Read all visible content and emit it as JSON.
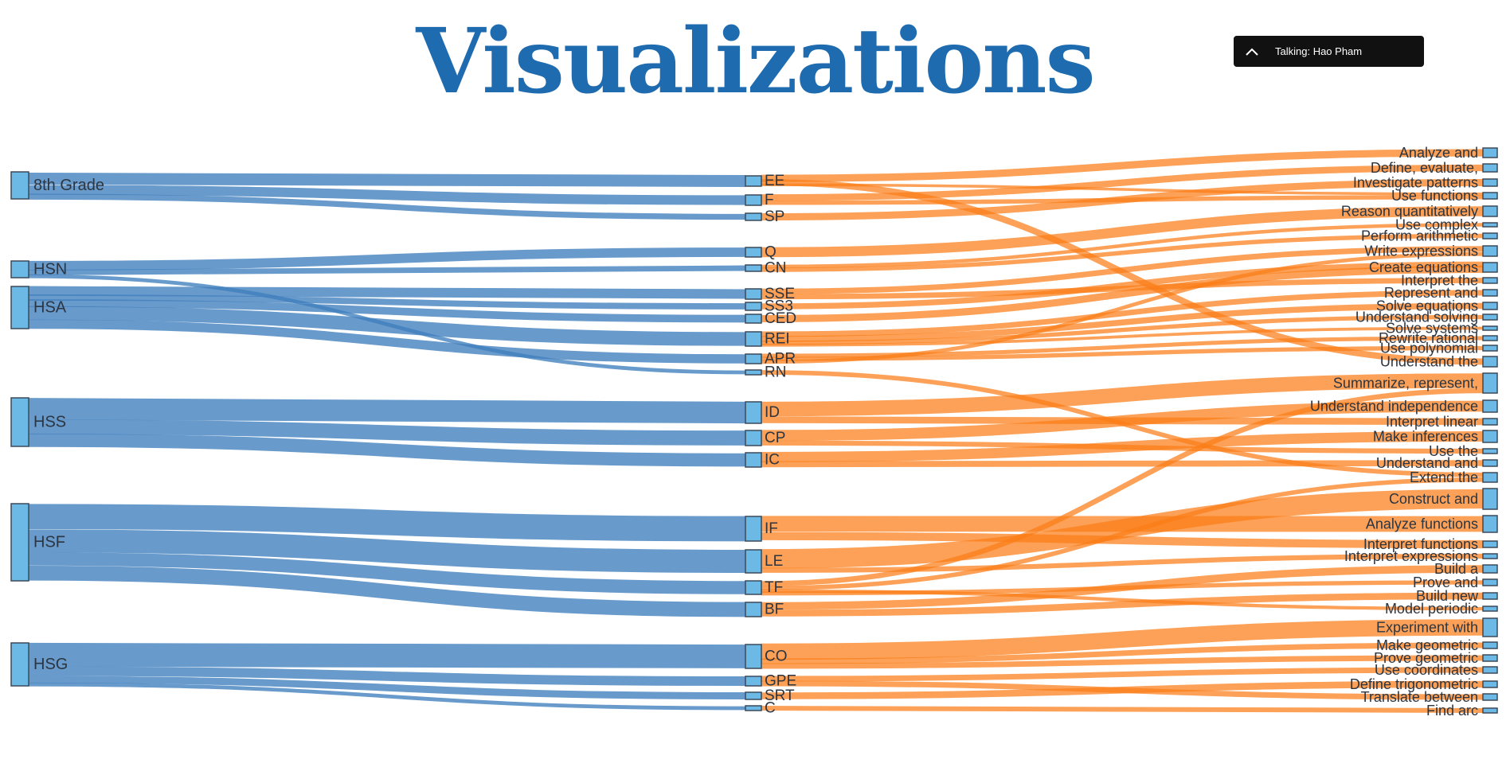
{
  "slide": {
    "title": "Visualizations"
  },
  "meeting": {
    "talking_label": "Talking: Hao Pham"
  },
  "colors": {
    "left_link": "#3d7ebc",
    "right_link": "#fb7d16",
    "node_fill": "#6db9e6",
    "node_stroke": "#3b4a5a",
    "title": "#1e6bb0"
  },
  "chart_data": {
    "type": "sankey",
    "levels": [
      [
        "8th Grade",
        "HSN",
        "HSA",
        "HSS",
        "HSF",
        "HSG"
      ],
      [
        "EE",
        "F",
        "SP",
        "Q",
        "CN",
        "SSE",
        "SS3",
        "CED",
        "REI",
        "APR",
        "RN",
        "ID",
        "CP",
        "IC",
        "IF",
        "LE",
        "TF",
        "BF",
        "CO",
        "GPE",
        "SRT",
        "C"
      ],
      [
        "Analyze and",
        "Define, evaluate,",
        "Investigate patterns",
        "Use functions",
        "Reason quantitatively",
        "Use complex",
        "Perform arithmetic",
        "Write expressions",
        "Create equations",
        "Interpret the",
        "Represent and",
        "Solve equations",
        "Understand solving",
        "Solve systems",
        "Rewrite rational",
        "Use polynomial",
        "Understand the",
        "Summarize, represent,",
        "Understand independence",
        "Interpret linear",
        "Make inferences",
        "Use the",
        "Understand and",
        "Extend the",
        "Construct and",
        "Analyze functions",
        "Interpret functions",
        "Interpret expressions",
        "Build a",
        "Prove and",
        "Build new",
        "Model periodic",
        "Experiment with",
        "Make geometric",
        "Prove geometric",
        "Use coordinates",
        "Define trigonometric",
        "Translate between",
        "Find arc"
      ]
    ],
    "links": [
      {
        "source": "8th Grade",
        "target": "EE",
        "value": 3
      },
      {
        "source": "8th Grade",
        "target": "F",
        "value": 2
      },
      {
        "source": "8th Grade",
        "target": "SP",
        "value": 1
      },
      {
        "source": "HSN",
        "target": "Q",
        "value": 2
      },
      {
        "source": "HSN",
        "target": "CN",
        "value": 1
      },
      {
        "source": "HSN",
        "target": "RN",
        "value": 0.6
      },
      {
        "source": "HSA",
        "target": "SSE",
        "value": 2
      },
      {
        "source": "HSA",
        "target": "SS3",
        "value": 1
      },
      {
        "source": "HSA",
        "target": "CED",
        "value": 1.5
      },
      {
        "source": "HSA",
        "target": "REI",
        "value": 3
      },
      {
        "source": "HSA",
        "target": "APR",
        "value": 2
      },
      {
        "source": "HSS",
        "target": "ID",
        "value": 4.5
      },
      {
        "source": "HSS",
        "target": "CP",
        "value": 3
      },
      {
        "source": "HSS",
        "target": "IC",
        "value": 2.5
      },
      {
        "source": "HSF",
        "target": "IF",
        "value": 5
      },
      {
        "source": "HSF",
        "target": "LE",
        "value": 4.5
      },
      {
        "source": "HSF",
        "target": "TF",
        "value": 2.5
      },
      {
        "source": "HSF",
        "target": "BF",
        "value": 3
      },
      {
        "source": "HSG",
        "target": "CO",
        "value": 5
      },
      {
        "source": "HSG",
        "target": "GPE",
        "value": 2
      },
      {
        "source": "HSG",
        "target": "SRT",
        "value": 1.5
      },
      {
        "source": "HSG",
        "target": "C",
        "value": 0.6
      },
      {
        "source": "EE",
        "target": "Analyze and",
        "value": 1.5
      },
      {
        "source": "EE",
        "target": "Understand the",
        "value": 0.7
      },
      {
        "source": "EE",
        "target": "Use functions",
        "value": 0.8
      },
      {
        "source": "F",
        "target": "Define, evaluate,",
        "value": 1
      },
      {
        "source": "F",
        "target": "Use functions",
        "value": 1
      },
      {
        "source": "SP",
        "target": "Investigate patterns",
        "value": 1
      },
      {
        "source": "Q",
        "target": "Reason quantitatively",
        "value": 2
      },
      {
        "source": "CN",
        "target": "Use complex",
        "value": 0.5
      },
      {
        "source": "CN",
        "target": "Perform arithmetic",
        "value": 0.5
      },
      {
        "source": "SSE",
        "target": "Write expressions",
        "value": 1
      },
      {
        "source": "SSE",
        "target": "Interpret the",
        "value": 1
      },
      {
        "source": "SS3",
        "target": "Create equations",
        "value": 1
      },
      {
        "source": "CED",
        "target": "Create equations",
        "value": 1.5
      },
      {
        "source": "REI",
        "target": "Represent and",
        "value": 1
      },
      {
        "source": "REI",
        "target": "Solve equations",
        "value": 1
      },
      {
        "source": "REI",
        "target": "Understand solving",
        "value": 0.6
      },
      {
        "source": "REI",
        "target": "Solve systems",
        "value": 0.4
      },
      {
        "source": "APR",
        "target": "Rewrite rational",
        "value": 0.7
      },
      {
        "source": "APR",
        "target": "Use polynomial",
        "value": 0.6
      },
      {
        "source": "APR",
        "target": "Write expressions",
        "value": 0.7
      },
      {
        "source": "RN",
        "target": "Extend the",
        "value": 0.6
      },
      {
        "source": "ID",
        "target": "Summarize, represent,",
        "value": 3
      },
      {
        "source": "ID",
        "target": "Interpret linear",
        "value": 1.5
      },
      {
        "source": "CP",
        "target": "Understand independence",
        "value": 2
      },
      {
        "source": "CP",
        "target": "Use the",
        "value": 1
      },
      {
        "source": "IC",
        "target": "Make inferences",
        "value": 1.5
      },
      {
        "source": "IC",
        "target": "Understand and",
        "value": 1
      },
      {
        "source": "IF",
        "target": "Analyze functions",
        "value": 3
      },
      {
        "source": "IF",
        "target": "Interpret functions",
        "value": 2
      },
      {
        "source": "LE",
        "target": "Construct and",
        "value": 3.5
      },
      {
        "source": "LE",
        "target": "Interpret expressions",
        "value": 1
      },
      {
        "source": "TF",
        "target": "Summarize, represent,",
        "value": 1
      },
      {
        "source": "TF",
        "target": "Extend the",
        "value": 0.7
      },
      {
        "source": "TF",
        "target": "Model periodic",
        "value": 0.4
      },
      {
        "source": "TF",
        "target": "Prove and",
        "value": 0.4
      },
      {
        "source": "BF",
        "target": "Build a",
        "value": 1.5
      },
      {
        "source": "BF",
        "target": "Build new",
        "value": 1.5
      },
      {
        "source": "CO",
        "target": "Experiment with",
        "value": 3
      },
      {
        "source": "CO",
        "target": "Make geometric",
        "value": 1
      },
      {
        "source": "CO",
        "target": "Prove geometric",
        "value": 1
      },
      {
        "source": "GPE",
        "target": "Use coordinates",
        "value": 1
      },
      {
        "source": "GPE",
        "target": "Translate between",
        "value": 1
      },
      {
        "source": "SRT",
        "target": "Define trigonometric",
        "value": 1.5
      },
      {
        "source": "C",
        "target": "Find arc",
        "value": 0.6
      }
    ]
  }
}
